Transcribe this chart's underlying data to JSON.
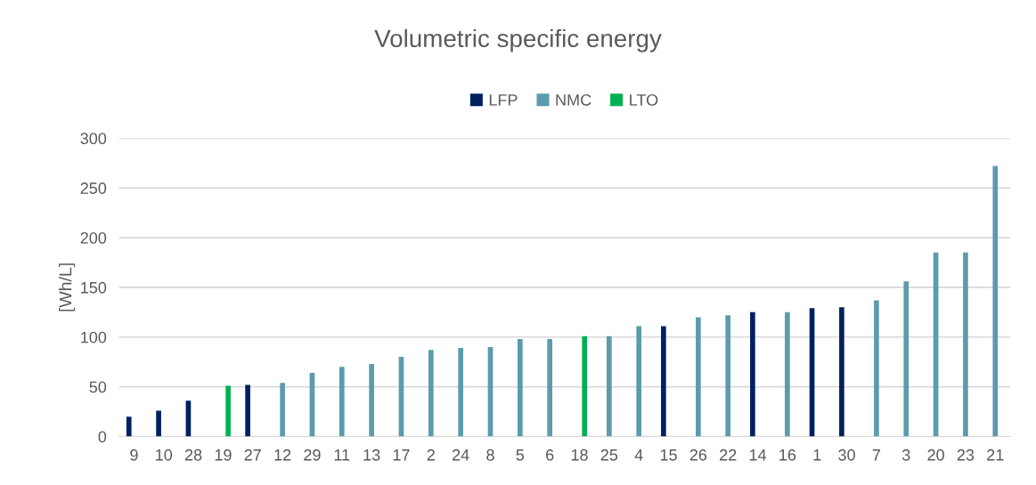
{
  "chart_data": {
    "type": "bar",
    "title": "Volumetric specific energy",
    "ylabel": "[Wh/L]",
    "categories": [
      "9",
      "10",
      "28",
      "19",
      "27",
      "12",
      "29",
      "11",
      "13",
      "17",
      "2",
      "24",
      "8",
      "5",
      "6",
      "18",
      "25",
      "4",
      "15",
      "26",
      "22",
      "14",
      "16",
      "1",
      "30",
      "7",
      "3",
      "20",
      "23",
      "21"
    ],
    "series": [
      {
        "name": "LFP",
        "color": "#002060",
        "values": [
          20,
          26,
          36,
          null,
          52,
          null,
          null,
          null,
          null,
          null,
          null,
          null,
          null,
          null,
          null,
          null,
          null,
          null,
          111,
          null,
          null,
          125,
          null,
          129,
          130,
          null,
          null,
          null,
          null,
          null
        ]
      },
      {
        "name": "NMC",
        "color": "#5b9bad",
        "values": [
          null,
          null,
          null,
          null,
          null,
          54,
          64,
          70,
          73,
          80,
          87,
          89,
          90,
          98,
          98,
          null,
          101,
          111,
          null,
          120,
          122,
          null,
          125,
          null,
          null,
          137,
          156,
          185,
          185,
          272
        ]
      },
      {
        "name": "LTO",
        "color": "#00b050",
        "values": [
          null,
          null,
          null,
          51,
          null,
          null,
          null,
          null,
          null,
          null,
          null,
          null,
          null,
          null,
          null,
          101,
          null,
          null,
          null,
          null,
          null,
          null,
          null,
          null,
          null,
          null,
          null,
          null,
          null,
          null
        ]
      }
    ],
    "ylim": [
      0,
      300
    ],
    "yticks": [
      0,
      50,
      100,
      150,
      200,
      250,
      300
    ],
    "grid": "y",
    "legend": "top"
  }
}
